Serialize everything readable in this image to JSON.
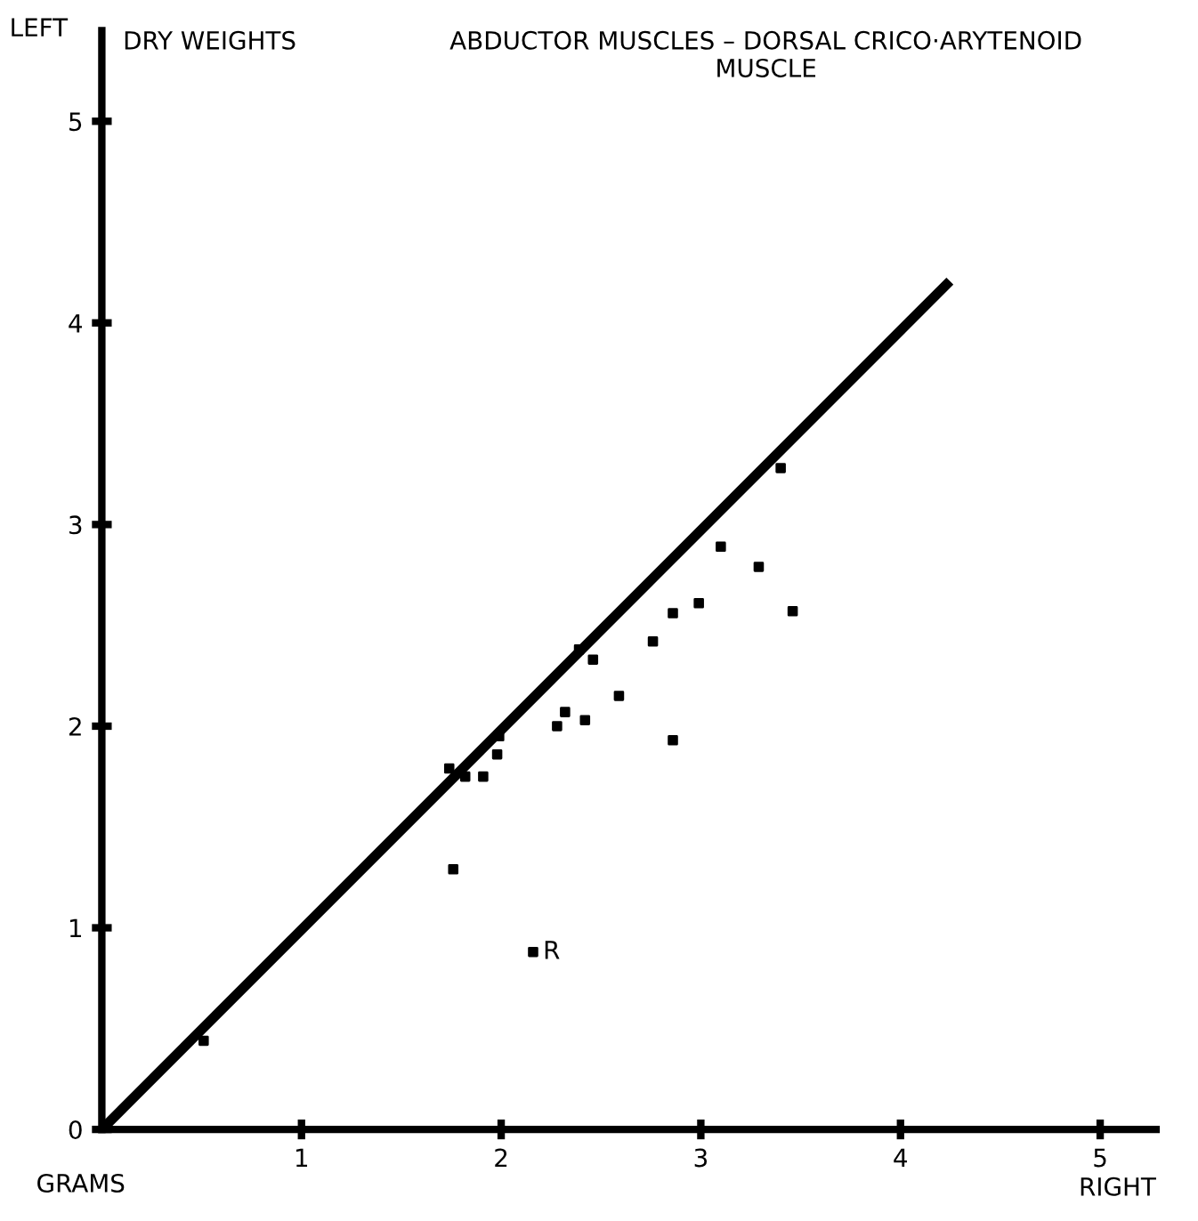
{
  "chart_data": {
    "type": "scatter",
    "title": "DRY WEIGHTS",
    "subtitle": "ABDUCTOR MUSCLES – DORSAL CRICO·ARYTENOID\nMUSCLE",
    "xlabel": "RIGHT",
    "ylabel": "LEFT",
    "annotations": [
      "GRAMS",
      {
        "text": "R",
        "x": 2.16,
        "y": 0.88
      }
    ],
    "xlim": [
      0,
      5.28
    ],
    "ylim": [
      0,
      5.45
    ],
    "xticks": [
      1,
      2,
      3,
      4,
      5
    ],
    "yticks": [
      0,
      1,
      2,
      3,
      4,
      5
    ],
    "grid": false,
    "series": [
      {
        "marker": "square",
        "color": "#000000",
        "x": [
          0.51,
          1.76,
          1.74,
          1.82,
          1.91,
          1.98,
          1.99,
          2.28,
          2.32,
          2.42,
          2.59,
          2.46,
          2.39,
          2.76,
          2.86,
          2.99,
          3.1,
          3.29,
          3.46,
          3.4,
          2.86,
          2.16
        ],
        "values": [
          0.44,
          1.29,
          1.79,
          1.75,
          1.75,
          1.86,
          1.95,
          2.0,
          2.07,
          2.03,
          2.15,
          2.33,
          2.38,
          2.42,
          2.56,
          2.61,
          2.89,
          2.79,
          2.57,
          3.28,
          1.93,
          0.88
        ]
      },
      {
        "type": "line",
        "color": "#000000",
        "x": [
          0,
          4.23
        ],
        "values": [
          0,
          4.19
        ],
        "line_style": "solid"
      }
    ]
  }
}
